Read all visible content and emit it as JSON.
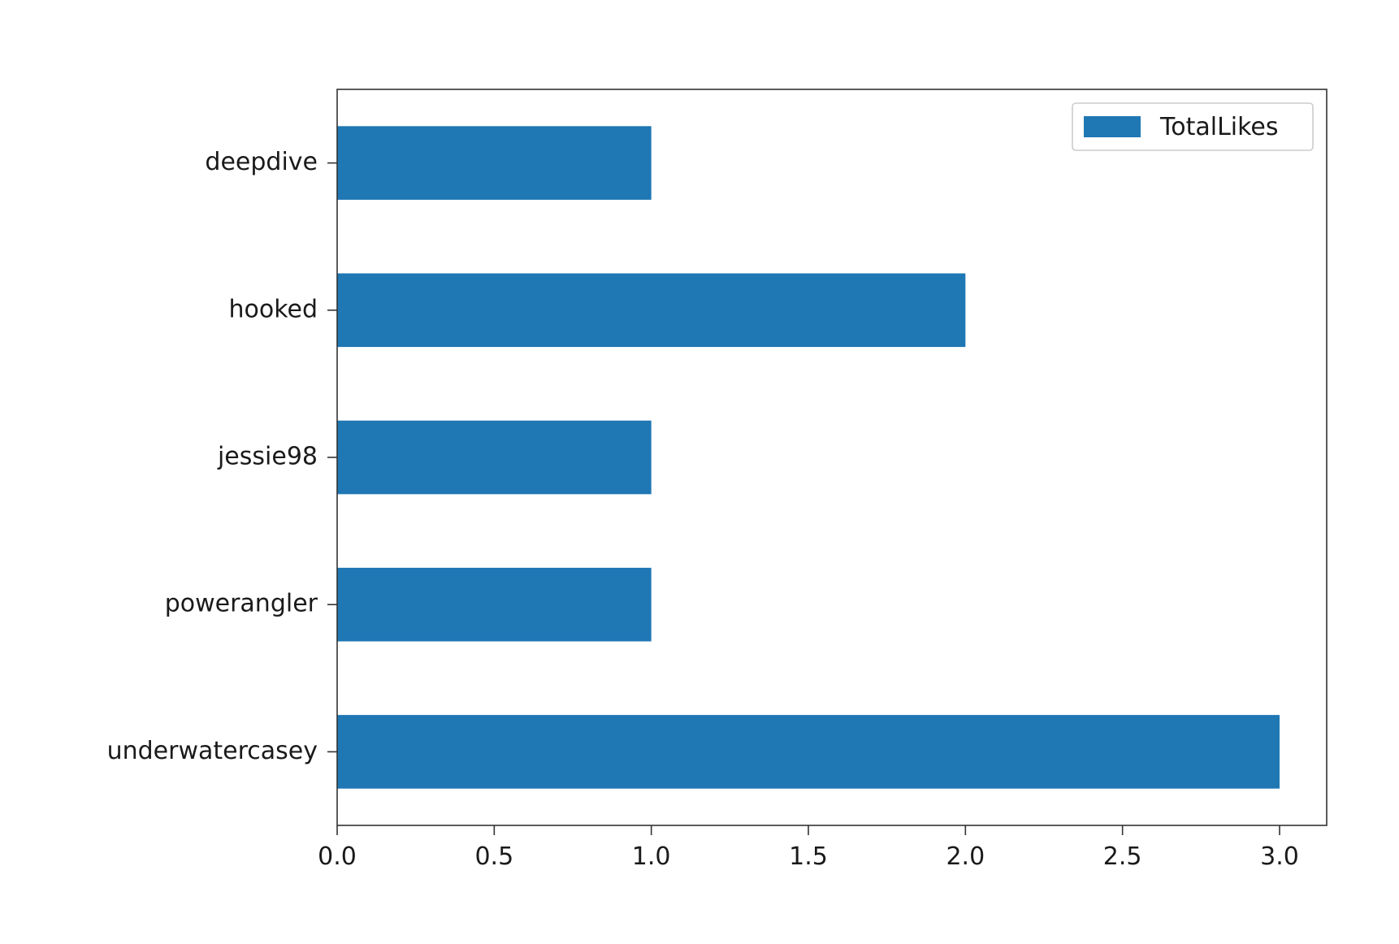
{
  "chart_data": {
    "type": "bar",
    "orientation": "horizontal",
    "categories": [
      "deepdive",
      "hooked",
      "jessie98",
      "powerangler",
      "underwatercasey"
    ],
    "series": [
      {
        "name": "TotalLikes",
        "values": [
          1,
          2,
          1,
          1,
          3
        ],
        "color": "#1f77b4"
      }
    ],
    "xticks": [
      "0.0",
      "0.5",
      "1.0",
      "1.5",
      "2.0",
      "2.5",
      "3.0"
    ],
    "xlim": [
      0,
      3.15
    ],
    "title": "",
    "xlabel": "",
    "ylabel": "",
    "grid": false,
    "legend_position": "top-right"
  }
}
